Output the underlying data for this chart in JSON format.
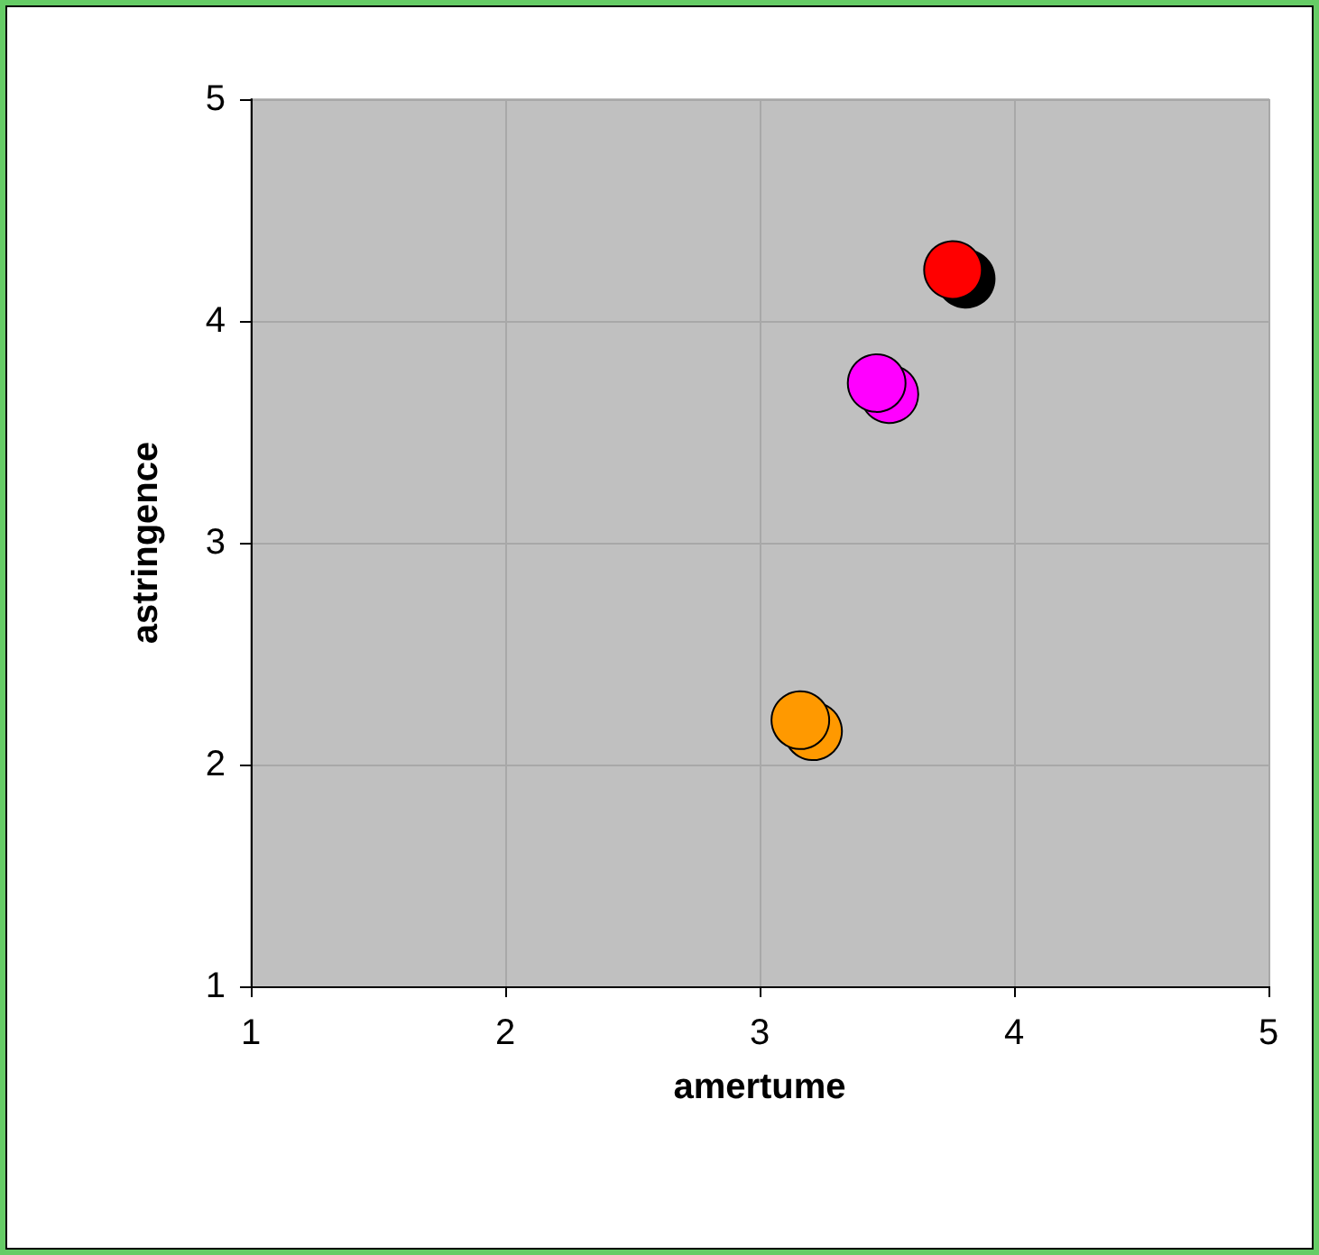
{
  "chart_data": {
    "type": "scatter",
    "xlabel": "amertume",
    "ylabel": "astringence",
    "series": [
      {
        "x": [
          3.81,
          3.51,
          3.21
        ],
        "values": [
          4.19,
          3.67,
          2.15
        ],
        "colors": [
          "#000000",
          "#ff00ff",
          "#ff9900"
        ]
      },
      {
        "x": [
          3.76,
          3.46,
          3.16
        ],
        "values": [
          4.23,
          3.72,
          2.2
        ],
        "colors": [
          "#ff0000",
          "#ff00ff",
          "#ff9900"
        ]
      }
    ],
    "xlim": [
      1,
      5
    ],
    "xticks": [
      1,
      2,
      3,
      4,
      5
    ],
    "ylim": [
      1,
      5
    ],
    "yticks": [
      1,
      2,
      3,
      4,
      5
    ],
    "grid": true,
    "marker": "circle"
  }
}
